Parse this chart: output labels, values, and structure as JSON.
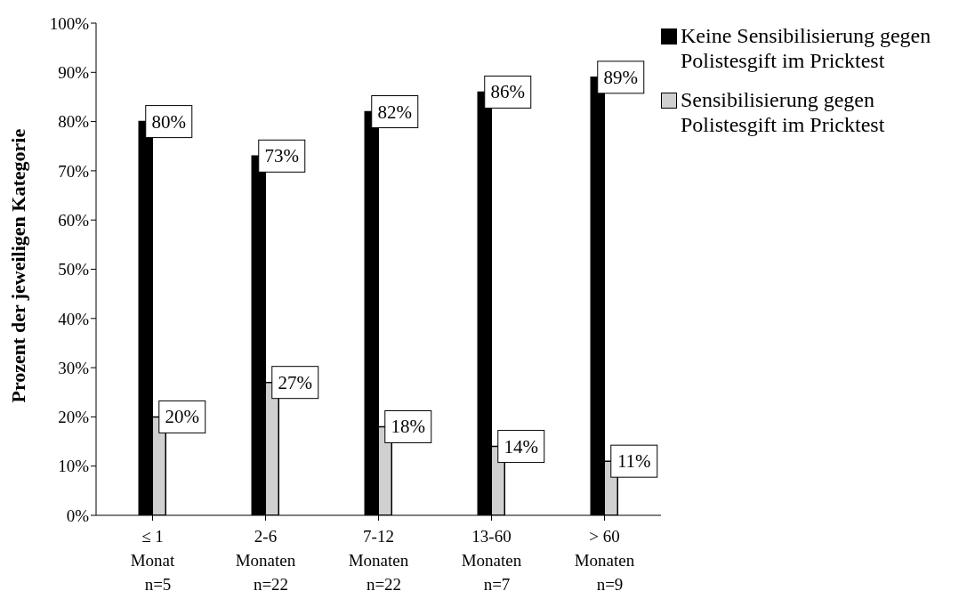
{
  "chart_data": {
    "type": "bar",
    "ylabel": "Prozent der jeweiligen Kategorie",
    "categories": [
      "≤ 1\nMonat\nn=5",
      "2-6\nMonaten\nn=22",
      "7-12\nMonaten\nn=22",
      "13-60\nMonaten\nn=7",
      "> 60\nMonaten\nn=9"
    ],
    "series": [
      {
        "name": "Keine Sensibilisierung gegen Polistesgift im Pricktest",
        "color": "#000000",
        "values": [
          80,
          73,
          82,
          86,
          89
        ],
        "value_labels": [
          "80%",
          "73%",
          "82%",
          "86%",
          "89%"
        ]
      },
      {
        "name": "Sensibilisierung gegen Polistesgift im Pricktest",
        "color": "#d0d0d0",
        "values": [
          20,
          27,
          18,
          14,
          11
        ],
        "value_labels": [
          "20%",
          "27%",
          "18%",
          "14%",
          "11%"
        ]
      }
    ],
    "ylim": [
      0,
      100
    ],
    "yticks": [
      {
        "value": 0,
        "label": "0%"
      },
      {
        "value": 10,
        "label": "10%"
      },
      {
        "value": 20,
        "label": "20%"
      },
      {
        "value": 30,
        "label": "30%"
      },
      {
        "value": 40,
        "label": "40%"
      },
      {
        "value": 50,
        "label": "50%"
      },
      {
        "value": 60,
        "label": "60%"
      },
      {
        "value": 70,
        "label": "70%"
      },
      {
        "value": 80,
        "label": "80%"
      },
      {
        "value": 90,
        "label": "90%"
      },
      {
        "value": 100,
        "label": "100%"
      }
    ],
    "grid": false,
    "legend": "top right"
  }
}
